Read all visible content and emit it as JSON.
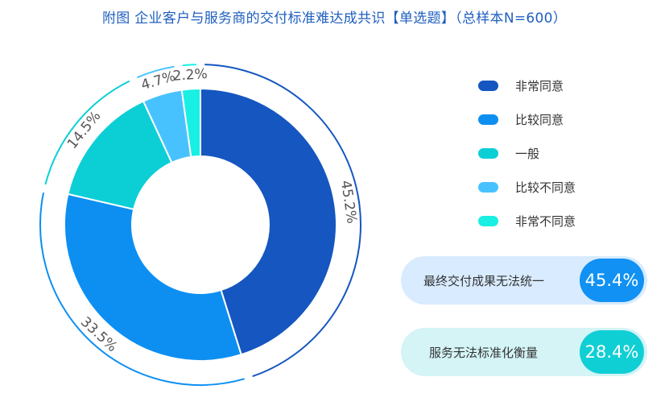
{
  "title": "附图 企业客户与服务商的交付标准难达成共识【单选题】（总样本N=600）",
  "chart_data": {
    "type": "donut",
    "title": "附图 企业客户与服务商的交付标准难达成共识【单选题】（总样本N=600）",
    "categories": [
      "非常同意",
      "比较同意",
      "一般",
      "比较不同意",
      "非常不同意"
    ],
    "values": [
      45.2,
      33.5,
      14.5,
      4.7,
      2.2
    ],
    "labels": [
      "45.2%",
      "33.5%",
      "14.5%",
      "4.7%",
      "2.2%"
    ],
    "colors": [
      "#1556c0",
      "#0d8ff2",
      "#0ccfd6",
      "#48c2ff",
      "#19efe3"
    ],
    "legend_position": "right"
  },
  "callouts": [
    {
      "label": "最终交付成果无法统一",
      "value": "45.4%",
      "bg": "#d8ebff",
      "badge": "#1091f3"
    },
    {
      "label": "服务无法标准化衡量",
      "value": "28.4%",
      "bg": "#d4f4f6",
      "badge": "#10cfd4"
    }
  ]
}
